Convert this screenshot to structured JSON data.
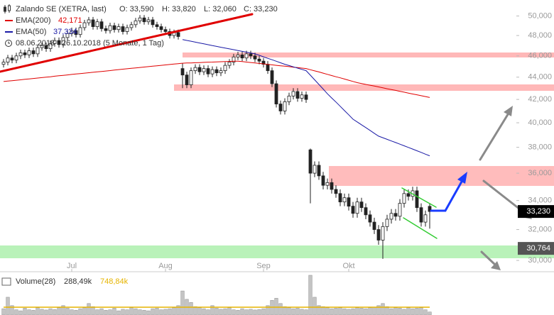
{
  "chart_data": {
    "type": "candlestick",
    "title": "Zalando SE (XETRA, last)",
    "quote_labels": [
      "O: 33,590",
      "H: 33,820",
      "L: 32,060",
      "C: 33,230"
    ],
    "date_range": "08.06.2018 - 26.10.2018 (5 Monate, 1 Tag)",
    "categories": [
      null,
      null,
      null,
      null,
      null,
      null,
      null,
      null,
      null,
      null,
      null,
      null,
      null,
      null,
      null,
      null,
      "Jul",
      null,
      null,
      null,
      null,
      null,
      null,
      null,
      null,
      null,
      null,
      null,
      null,
      null,
      null,
      null,
      null,
      null,
      null,
      null,
      null,
      null,
      "Aug",
      null,
      null,
      null,
      null,
      null,
      null,
      null,
      null,
      null,
      null,
      null,
      null,
      null,
      null,
      null,
      null,
      null,
      null,
      null,
      null,
      null,
      null,
      "Sep",
      null,
      null,
      null,
      null,
      null,
      null,
      null,
      null,
      null,
      null,
      null,
      null,
      null,
      null,
      null,
      null,
      null,
      null,
      null,
      "Okt",
      null,
      null,
      null,
      null,
      null,
      null,
      null,
      null,
      null,
      null,
      null,
      null,
      null,
      null,
      null,
      null,
      null,
      null,
      null
    ],
    "open": [
      45200,
      45400,
      45800,
      45600,
      46000,
      46300,
      46100,
      46500,
      46200,
      46800,
      47000,
      46700,
      47200,
      47500,
      47100,
      47800,
      48200,
      48500,
      48100,
      48800,
      49300,
      49600,
      48900,
      49400,
      48700,
      48500,
      49000,
      48600,
      48900,
      48400,
      48800,
      49100,
      49500,
      49800,
      49400,
      49600,
      49100,
      48900,
      48600,
      48400,
      48000,
      48300,
      44800,
      44200,
      43300,
      44600,
      44900,
      44500,
      44800,
      44300,
      44700,
      44400,
      44600,
      45100,
      45400,
      45900,
      46100,
      45800,
      46200,
      46000,
      45700,
      45500,
      45200,
      44600,
      43400,
      41600,
      41000,
      41800,
      42300,
      42700,
      42100,
      42400,
      37800,
      36000,
      36600,
      35800,
      35100,
      35300,
      34800,
      34500,
      33900,
      34200,
      33600,
      33100,
      33900,
      33500,
      33000,
      32500,
      32000,
      31300,
      32200,
      32700,
      33100,
      32900,
      33800,
      34500,
      34300,
      34700,
      33500,
      32500,
      33590
    ],
    "high": [
      45700,
      46100,
      46100,
      46300,
      46600,
      46600,
      46800,
      46800,
      47100,
      47300,
      47300,
      47500,
      47800,
      47800,
      48100,
      48500,
      48800,
      48800,
      49100,
      49600,
      49900,
      49900,
      49700,
      49700,
      49000,
      49300,
      49300,
      49200,
      49200,
      49100,
      49400,
      49800,
      50100,
      50100,
      49900,
      49900,
      49400,
      49200,
      48900,
      48700,
      48600,
      48600,
      45300,
      44500,
      44900,
      45200,
      45200,
      45100,
      45100,
      45000,
      45000,
      44900,
      45400,
      45700,
      46200,
      46400,
      46400,
      46500,
      46500,
      46300,
      46000,
      45800,
      45500,
      44900,
      43700,
      41900,
      42100,
      42600,
      43000,
      43000,
      42700,
      42700,
      37900,
      36900,
      36900,
      36100,
      35600,
      35600,
      35100,
      34800,
      34500,
      34500,
      33900,
      34200,
      34200,
      33800,
      33300,
      32800,
      32300,
      32500,
      33000,
      33400,
      33400,
      34100,
      34800,
      34800,
      35000,
      35000,
      33800,
      33300,
      33820
    ],
    "low": [
      44900,
      45100,
      45300,
      45300,
      45700,
      45800,
      45800,
      45900,
      45900,
      46500,
      46400,
      46400,
      46900,
      46800,
      46800,
      47500,
      47900,
      47800,
      47800,
      48500,
      49000,
      48600,
      48600,
      48400,
      48200,
      48200,
      48300,
      48300,
      48100,
      48100,
      48500,
      48800,
      49200,
      49100,
      49100,
      48800,
      48600,
      48300,
      48100,
      47700,
      47700,
      47600,
      43000,
      43000,
      43000,
      44300,
      44200,
      44200,
      44000,
      44000,
      44100,
      44100,
      44300,
      44800,
      45100,
      45600,
      45500,
      45500,
      45700,
      45400,
      45200,
      44900,
      44300,
      43100,
      41300,
      40700,
      40700,
      41500,
      42000,
      41800,
      41800,
      41700,
      33800,
      35700,
      35500,
      34800,
      34800,
      34500,
      34200,
      33600,
      33600,
      33300,
      32800,
      32800,
      33200,
      32700,
      32200,
      31700,
      31000,
      30100,
      31900,
      32400,
      32600,
      32600,
      33500,
      34000,
      34000,
      33200,
      32200,
      32200,
      32060
    ],
    "close": [
      45400,
      45800,
      45600,
      46000,
      46300,
      46100,
      46500,
      46200,
      46800,
      47000,
      46700,
      47200,
      47500,
      47100,
      47800,
      48200,
      48500,
      48100,
      48800,
      49300,
      49600,
      48900,
      49400,
      48700,
      48500,
      49000,
      48600,
      48900,
      48400,
      48800,
      49100,
      49500,
      49800,
      49400,
      49600,
      49100,
      48900,
      48600,
      48400,
      48000,
      48300,
      47900,
      44200,
      43300,
      44600,
      44900,
      44500,
      44800,
      44300,
      44700,
      44400,
      44600,
      45100,
      45400,
      45900,
      46100,
      45800,
      46200,
      46000,
      45700,
      45500,
      45200,
      44600,
      43400,
      41600,
      41000,
      41800,
      42300,
      42700,
      42100,
      42400,
      42000,
      36000,
      36600,
      35800,
      35100,
      35300,
      34800,
      34500,
      33900,
      34200,
      33600,
      33100,
      33900,
      33500,
      33000,
      32500,
      32000,
      31300,
      32200,
      32700,
      33100,
      32900,
      33800,
      34500,
      34300,
      34700,
      33500,
      32500,
      33000,
      33230
    ],
    "series": [
      {
        "name": "EMA(200)",
        "color": "#e00000",
        "value_label": "42,171",
        "values": [
          43600,
          43640,
          43680,
          43720,
          43760,
          43800,
          43840,
          43880,
          43920,
          43960,
          44000,
          44040,
          44090,
          44130,
          44170,
          44210,
          44250,
          44290,
          44330,
          44370,
          44410,
          44450,
          44490,
          44530,
          44570,
          44610,
          44660,
          44700,
          44740,
          44780,
          44820,
          44860,
          44900,
          44940,
          44980,
          45020,
          45060,
          45100,
          45140,
          45180,
          45220,
          45260,
          45300,
          45320,
          45330,
          45350,
          45360,
          45380,
          45400,
          45410,
          45430,
          45440,
          45460,
          45470,
          45490,
          45500,
          45460,
          45410,
          45370,
          45320,
          45280,
          45240,
          45190,
          45150,
          45100,
          45060,
          45020,
          44980,
          44930,
          44890,
          44840,
          44800,
          44690,
          44580,
          44480,
          44370,
          44260,
          44150,
          44040,
          43940,
          43830,
          43720,
          43610,
          43500,
          43420,
          43340,
          43270,
          43190,
          43110,
          43030,
          42950,
          42870,
          42800,
          42720,
          42640,
          42560,
          42480,
          42410,
          42330,
          42250,
          42171
        ]
      },
      {
        "name": "EMA(50)",
        "color": "#1a1aa6",
        "value_label": "37,334",
        "values": [
          null,
          null,
          null,
          null,
          null,
          null,
          null,
          null,
          null,
          null,
          null,
          null,
          null,
          null,
          null,
          null,
          null,
          null,
          null,
          null,
          null,
          null,
          null,
          null,
          null,
          null,
          null,
          null,
          null,
          null,
          null,
          null,
          null,
          null,
          null,
          null,
          null,
          null,
          null,
          null,
          null,
          null,
          47600,
          47510,
          47430,
          47340,
          47260,
          47170,
          47090,
          47000,
          46920,
          46840,
          46760,
          46680,
          46600,
          46520,
          46440,
          46360,
          46280,
          46200,
          46060,
          45910,
          45770,
          45630,
          45490,
          45340,
          45200,
          45080,
          44960,
          44840,
          44720,
          44600,
          44180,
          43760,
          43340,
          42920,
          42500,
          42130,
          41770,
          41400,
          41030,
          40670,
          40300,
          40070,
          39830,
          39600,
          39370,
          39130,
          38900,
          38770,
          38640,
          38510,
          38380,
          38250,
          38120,
          37990,
          37860,
          37730,
          37600,
          37460,
          37334
        ]
      }
    ],
    "volume": {
      "name": "Volume(28)",
      "value_label": "288,49k",
      "color": "#c4c4c4",
      "values": [
        600,
        1700,
        900,
        500,
        400,
        650,
        500,
        450,
        700,
        550,
        480,
        600,
        520,
        700,
        900,
        650,
        500,
        450,
        600,
        700,
        1100,
        800,
        500,
        600,
        450,
        500,
        650,
        400,
        550,
        500,
        700,
        600,
        500,
        450,
        400,
        600,
        650,
        500,
        550,
        600,
        700,
        900,
        2300,
        1500,
        1200,
        800,
        700,
        600,
        500,
        900,
        650,
        550,
        600,
        700,
        500,
        450,
        600,
        500,
        550,
        480,
        520,
        600,
        900,
        1400,
        1600,
        1100,
        800,
        700,
        600,
        650,
        550,
        500,
        3800,
        1700,
        900,
        800,
        700,
        600,
        650,
        700,
        600,
        550,
        600,
        700,
        650,
        600,
        700,
        750,
        900,
        1100,
        800,
        600,
        700,
        650,
        550,
        700,
        600,
        650,
        700,
        500,
        288.49
      ],
      "average": {
        "value": 748.84,
        "label": "748,84k"
      },
      "average_color": "#e6b400"
    },
    "ylim": [
      29300,
      51700
    ],
    "log_scale": true,
    "grid": false,
    "yticks": [
      {
        "value": 30000,
        "label": "30,000"
      },
      {
        "value": 32000,
        "label": "32,000"
      },
      {
        "value": 34000,
        "label": "34,000"
      },
      {
        "value": 36000,
        "label": "36,000"
      },
      {
        "value": 38000,
        "label": "38,000"
      },
      {
        "value": 40000,
        "label": "40,000"
      },
      {
        "value": 42000,
        "label": "42,000"
      },
      {
        "value": 44000,
        "label": "44,000"
      },
      {
        "value": 46000,
        "label": "46,000"
      },
      {
        "value": 48000,
        "label": "48,000"
      },
      {
        "value": 50000,
        "label": "50,000"
      }
    ],
    "price_tags": [
      {
        "value": 33230,
        "label": "33,230",
        "color": "#000000"
      },
      {
        "value": 30764,
        "label": "30,764",
        "color": "#555555"
      }
    ]
  }
}
